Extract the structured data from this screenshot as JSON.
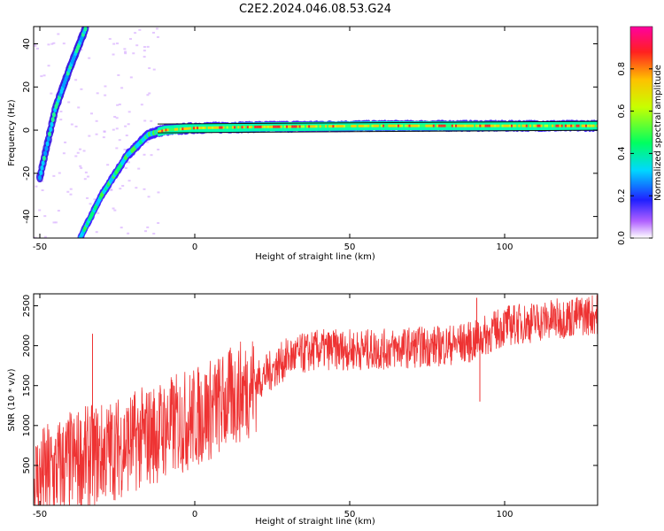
{
  "title": "C2E2.2024.046.08.53.G24",
  "chart_data": [
    {
      "type": "heatmap",
      "xlabel": "Height of straight line (km)",
      "ylabel": "Frequency (Hz)",
      "xlim": [
        -52,
        130
      ],
      "ylim": [
        -50,
        48
      ],
      "xticks": [
        -50,
        0,
        50,
        100
      ],
      "yticks": [
        -40,
        -20,
        0,
        20,
        40
      ],
      "colorbar": {
        "label": "Normalized spectral amplitude",
        "range": [
          0.0,
          1.0
        ],
        "ticks": [
          0.0,
          0.2,
          0.4,
          0.6,
          0.8
        ],
        "tick_labels": [
          "0.0",
          "0.2",
          "0.4",
          "0.6",
          "0.8"
        ]
      },
      "features": [
        {
          "name": "main-trace",
          "points": [
            [
              -37,
              -50
            ],
            [
              -30,
              -30
            ],
            [
              -22,
              -12
            ],
            [
              -15,
              -2
            ],
            [
              -10,
              0
            ],
            [
              0,
              1
            ],
            [
              20,
              1.5
            ],
            [
              60,
              2
            ],
            [
              90,
              2
            ],
            [
              130,
              2
            ]
          ]
        },
        {
          "name": "upper-trace",
          "points": [
            [
              -50,
              -22
            ],
            [
              -45,
              10
            ],
            [
              -40,
              30
            ],
            [
              -35,
              48
            ]
          ]
        }
      ]
    },
    {
      "type": "line",
      "xlabel": "Height of straight line (km)",
      "ylabel": "SNR (10 * v/v)",
      "xlim": [
        -52,
        130
      ],
      "ylim": [
        0,
        2650
      ],
      "xticks": [
        -50,
        0,
        50,
        100
      ],
      "yticks": [
        500,
        1000,
        1500,
        2000,
        2500
      ],
      "color": "#ee3333",
      "envelope": {
        "x": [
          -52,
          -40,
          -30,
          -20,
          -10,
          0,
          10,
          20,
          30,
          40,
          50,
          60,
          70,
          80,
          90,
          100,
          110,
          120,
          130
        ],
        "y": [
          300,
          550,
          650,
          800,
          950,
          1100,
          1300,
          1550,
          1850,
          1950,
          1950,
          1950,
          1980,
          2000,
          2050,
          2250,
          2300,
          2350,
          2400
        ]
      },
      "spikes": [
        {
          "x": -33,
          "y": 2150
        },
        {
          "x": 91,
          "y": 2600
        },
        {
          "x": 92,
          "y": 1300
        }
      ]
    }
  ]
}
